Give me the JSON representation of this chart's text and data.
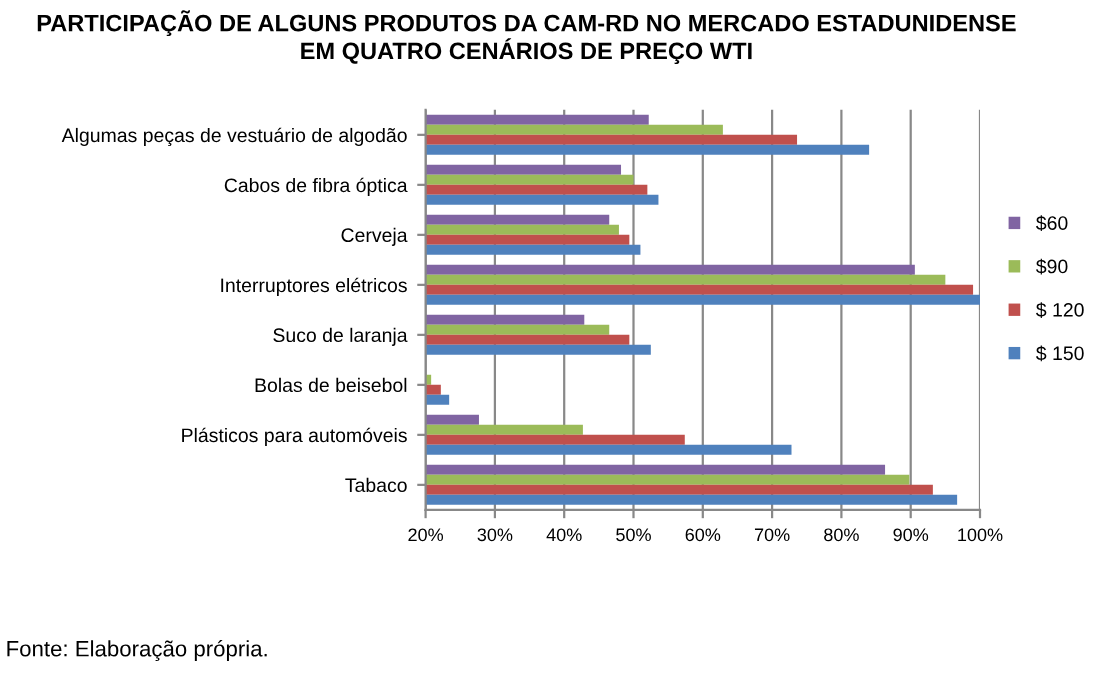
{
  "chart_data": {
    "type": "bar",
    "orientation": "horizontal",
    "title": "PARTICIPAÇÃO DE ALGUNS PRODUTOS DA CAM-RD NO MERCADO ESTADUNIDENSE\nEM QUATRO CENÁRIOS DE PREÇO WTI",
    "categories": [
      "Algumas peças de vestuário de algodão",
      "Cabos de fibra óptica",
      "Cerveja",
      "Interruptores elétricos",
      "Suco de laranja",
      "Bolas de beisebol",
      "Plásticos para automóveis",
      "Tabaco"
    ],
    "series": [
      {
        "name": "$60",
        "color": "#8064a2",
        "values": [
          52.2,
          48.2,
          46.5,
          90.6,
          42.9,
          null,
          27.7,
          86.3
        ]
      },
      {
        "name": "$90",
        "color": "#9bbb59",
        "values": [
          62.9,
          50.0,
          47.9,
          95.0,
          46.5,
          20.8,
          42.7,
          89.8
        ]
      },
      {
        "name": "$ 120",
        "color": "#c0504d",
        "values": [
          73.6,
          52.0,
          49.4,
          99.0,
          49.4,
          22.2,
          57.4,
          93.2
        ]
      },
      {
        "name": "$ 150",
        "color": "#4f81bd",
        "values": [
          84.0,
          53.6,
          51.0,
          100,
          52.5,
          23.4,
          72.8,
          96.7
        ]
      }
    ],
    "xlim": [
      20,
      100
    ],
    "xticks": [
      {
        "value": 20,
        "label": "20%"
      },
      {
        "value": 30,
        "label": "30%"
      },
      {
        "value": 40,
        "label": "40%"
      },
      {
        "value": 50,
        "label": "50%"
      },
      {
        "value": 60,
        "label": "60%"
      },
      {
        "value": 70,
        "label": "70%"
      },
      {
        "value": 80,
        "label": "80%"
      },
      {
        "value": 90,
        "label": "90%"
      },
      {
        "value": 100,
        "label": "100%"
      }
    ],
    "grid": "x",
    "legend": "right",
    "annotations": [
      "Fonte: Elaboração própria."
    ]
  }
}
